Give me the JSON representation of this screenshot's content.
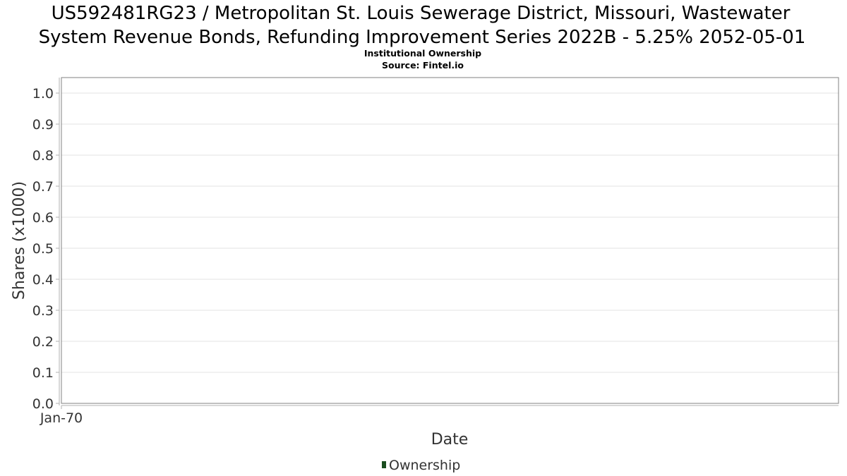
{
  "chart_data": {
    "type": "line",
    "title_lines": [
      "US592481RG23 / Metropolitan St. Louis Sewerage District, Missouri, Wastewater",
      "System Revenue Bonds, Refunding Improvement Series 2022B - 5.25% 2052-05-01"
    ],
    "subtitle_lines": [
      "Institutional Ownership",
      "Source: Fintel.io"
    ],
    "xlabel": "Date",
    "ylabel": "Shares (x1000)",
    "x_ticks": [
      "Jan-70"
    ],
    "y_ticks": [
      "0.0",
      "0.1",
      "0.2",
      "0.3",
      "0.4",
      "0.5",
      "0.6",
      "0.7",
      "0.8",
      "0.9",
      "1.0"
    ],
    "ylim": [
      0,
      1.05
    ],
    "grid": true,
    "legend_position": "bottom-center",
    "series": [
      {
        "name": "Ownership",
        "color": "#1a4d1f",
        "x": [],
        "values": []
      }
    ]
  }
}
